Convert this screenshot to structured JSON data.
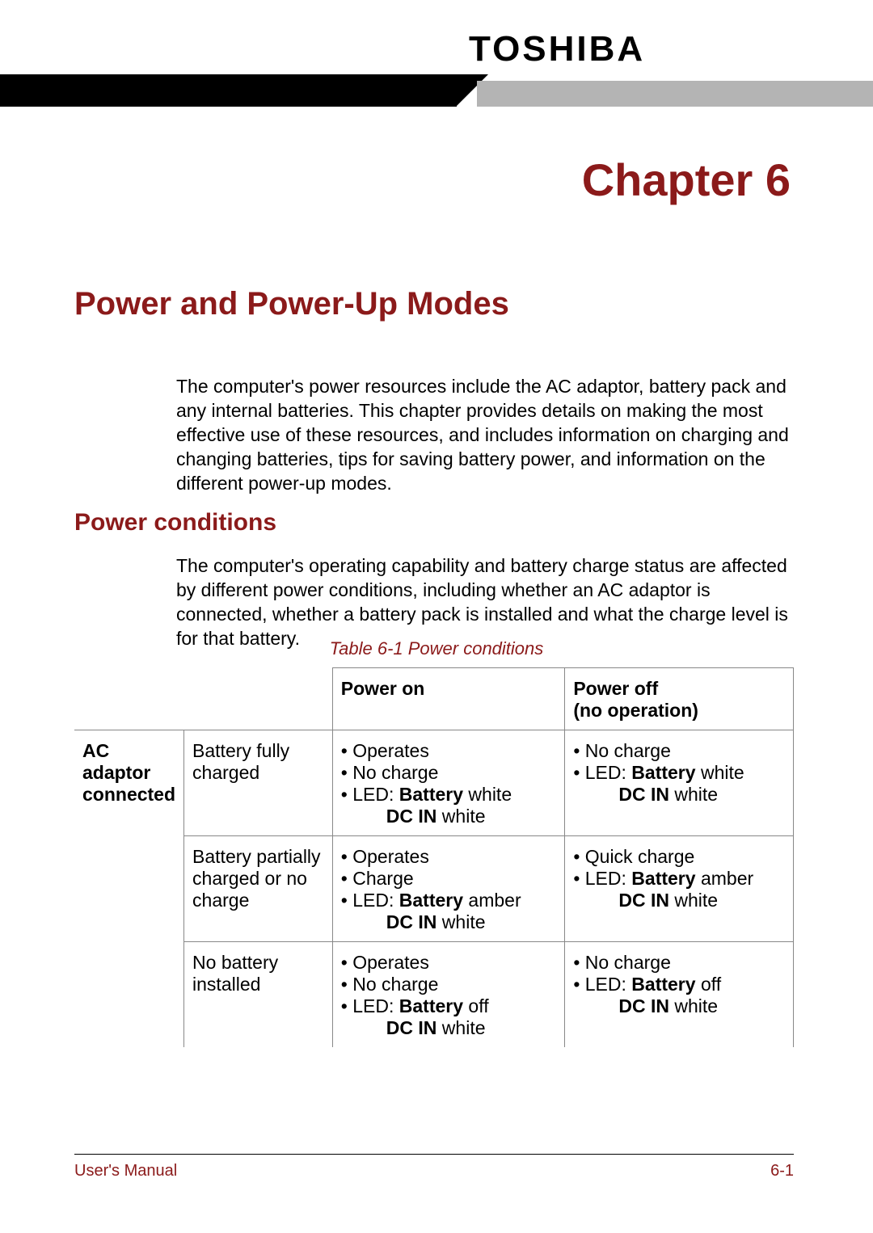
{
  "brand": "TOSHIBA",
  "chapter": {
    "label": "Chapter 6"
  },
  "section": {
    "title": "Power and Power-Up Modes"
  },
  "intro": "The computer's power resources include the AC adaptor, battery pack and any internal batteries. This chapter provides details on making the most effective use of these resources, and includes information on charging and changing batteries, tips for saving battery power, and information on the different power-up modes.",
  "subsection": {
    "title": "Power conditions",
    "paragraph": "The computer's operating capability and battery charge status are affected by different power conditions, including whether an AC adaptor is connected, whether a battery pack is installed and what the charge level is for that battery."
  },
  "table": {
    "caption": "Table 6-1 Power conditions",
    "headers": {
      "col3": "Power on",
      "col4_line1": "Power off",
      "col4_line2": "(no operation)"
    },
    "group_label_line1": "AC",
    "group_label_line2": "adaptor",
    "group_label_line3": "connected",
    "rows": [
      {
        "state": "Battery fully charged",
        "on": [
          "• Operates",
          "• No charge",
          "• LED: <b>Battery</b> white",
          "<span class='led-indent'><b>DC IN</b> white</span>"
        ],
        "off": [
          "• No charge",
          "• LED: <b>Battery</b> white",
          "<span class='led-indent'><b>DC IN</b> white</span>"
        ]
      },
      {
        "state": "Battery partially charged or no charge",
        "on": [
          "• Operates",
          "• Charge",
          "• LED: <b>Battery</b> amber",
          "<span class='led-indent'><b>DC IN</b> white</span>"
        ],
        "off": [
          "• Quick charge",
          "• LED: <b>Battery</b> amber",
          "<span class='led-indent'><b>DC IN</b> white</span>"
        ]
      },
      {
        "state": "No battery installed",
        "on": [
          "• Operates",
          "• No charge",
          "• LED: <b>Battery</b> off",
          "<span class='led-indent'><b>DC IN</b> white</span>"
        ],
        "off": [
          "• No charge",
          "• LED: <b>Battery</b> off",
          "<span class='led-indent'><b>DC IN</b> white</span>"
        ]
      }
    ]
  },
  "footer": {
    "left": "User's Manual",
    "right": "6-1"
  },
  "colors": {
    "accent": "#8b1a1a",
    "header_black": "#000000",
    "header_gray": "#b4b4b4",
    "table_border": "#888888",
    "background": "#ffffff",
    "text": "#000000"
  },
  "typography": {
    "brand_size_pt": 44,
    "chapter_size_pt": 56,
    "section_size_pt": 40,
    "subsection_size_pt": 30,
    "body_size_pt": 23,
    "caption_size_pt": 22,
    "footer_size_pt": 20
  }
}
